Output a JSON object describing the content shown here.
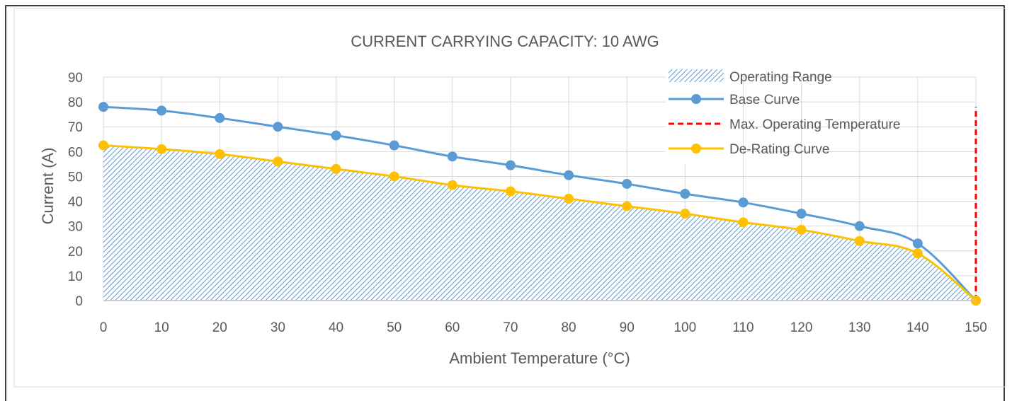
{
  "chart_data": {
    "type": "line",
    "title": "CURRENT CARRYING CAPACITY: 10 AWG",
    "xlabel": "Ambient Temperature (°C)",
    "ylabel": "Current (A)",
    "x": [
      0,
      10,
      20,
      30,
      40,
      50,
      60,
      70,
      80,
      90,
      100,
      110,
      120,
      130,
      140,
      150
    ],
    "xlim": [
      0,
      150
    ],
    "ylim": [
      0,
      90
    ],
    "x_ticks": [
      "0",
      "10",
      "20",
      "30",
      "40",
      "50",
      "60",
      "70",
      "80",
      "90",
      "100",
      "110",
      "120",
      "130",
      "140",
      "150"
    ],
    "y_ticks": [
      "0",
      "10",
      "20",
      "30",
      "40",
      "50",
      "60",
      "70",
      "80",
      "90"
    ],
    "grid": true,
    "legend_position": "top-right",
    "series": [
      {
        "name": "Operating Range",
        "kind": "area-hatched",
        "color": "#5b9bd5",
        "values": [
          62.5,
          61,
          59,
          56,
          53,
          50,
          46.5,
          44,
          41,
          38,
          35,
          31.5,
          28.5,
          24,
          19,
          0
        ]
      },
      {
        "name": "Base Curve",
        "kind": "line-markers",
        "color": "#5b9bd5",
        "values": [
          78,
          76.5,
          73.5,
          70,
          66.5,
          62.5,
          58,
          54.5,
          50.5,
          47,
          43,
          39.5,
          35,
          30,
          23,
          0
        ]
      },
      {
        "name": "Max. Operating Temperature",
        "kind": "vertical-dashed",
        "color": "#ff0000",
        "x": 150,
        "y_range": [
          0,
          78
        ]
      },
      {
        "name": "De-Rating Curve",
        "kind": "line-markers",
        "color": "#ffc000",
        "values": [
          62.5,
          61,
          59,
          56,
          53,
          50,
          46.5,
          44,
          41,
          38,
          35,
          31.5,
          28.5,
          24,
          19,
          0
        ]
      }
    ]
  }
}
